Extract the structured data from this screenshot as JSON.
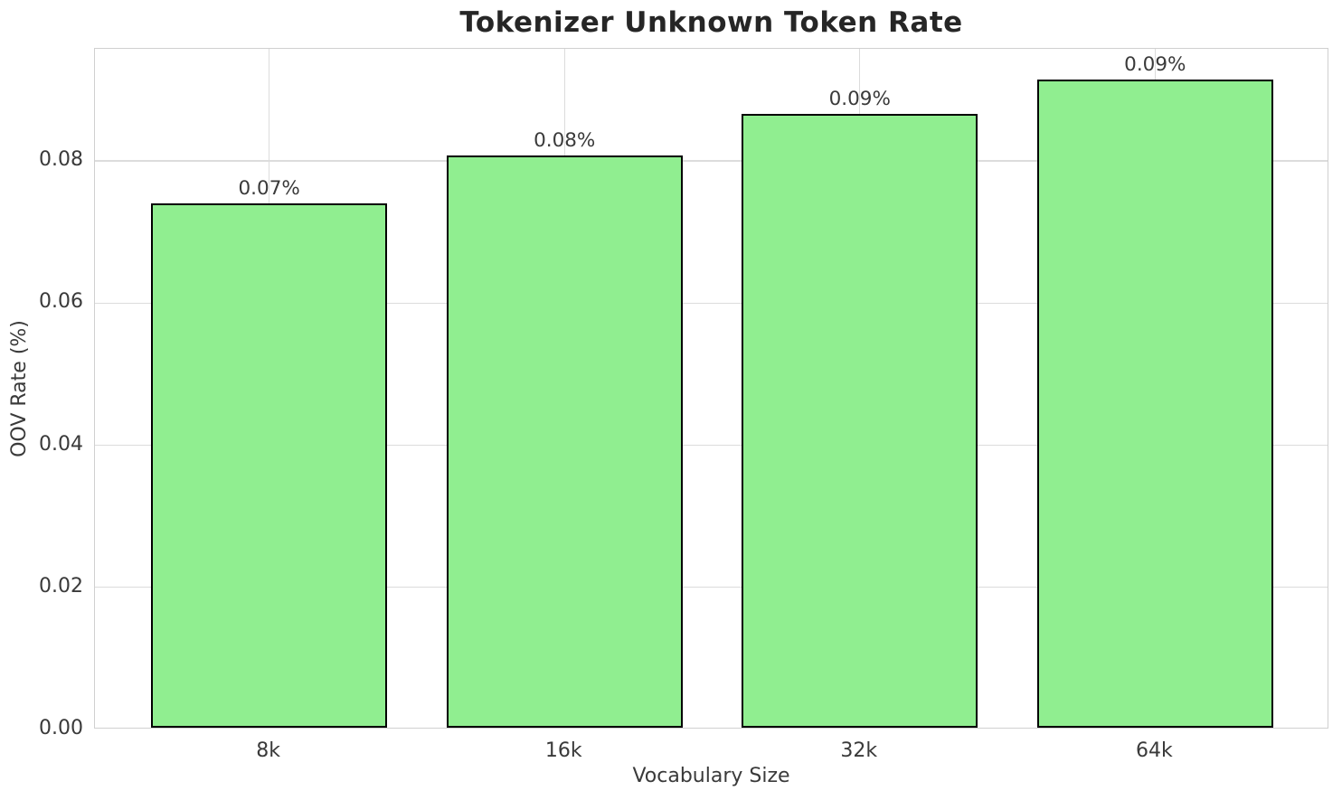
{
  "chart_data": {
    "type": "bar",
    "title": "Tokenizer Unknown Token Rate",
    "xlabel": "Vocabulary Size",
    "ylabel": "OOV Rate (%)",
    "categories": [
      "8k",
      "16k",
      "32k",
      "64k"
    ],
    "values": [
      0.0738,
      0.0805,
      0.0864,
      0.0912
    ],
    "bar_labels": [
      "0.07%",
      "0.08%",
      "0.09%",
      "0.09%"
    ],
    "yticks": [
      0.0,
      0.02,
      0.04,
      0.06,
      0.08
    ],
    "ytick_labels": [
      "0.00",
      "0.02",
      "0.04",
      "0.06",
      "0.08"
    ],
    "ylim": [
      0,
      0.0958
    ],
    "grid": true,
    "legend": null,
    "colors": {
      "bar_fill": "#90EE90",
      "bar_edge": "#000000",
      "grid": "#dcdcdc",
      "spine": "#d0d0d0",
      "text": "#3a3a3a",
      "title": "#262626"
    }
  }
}
